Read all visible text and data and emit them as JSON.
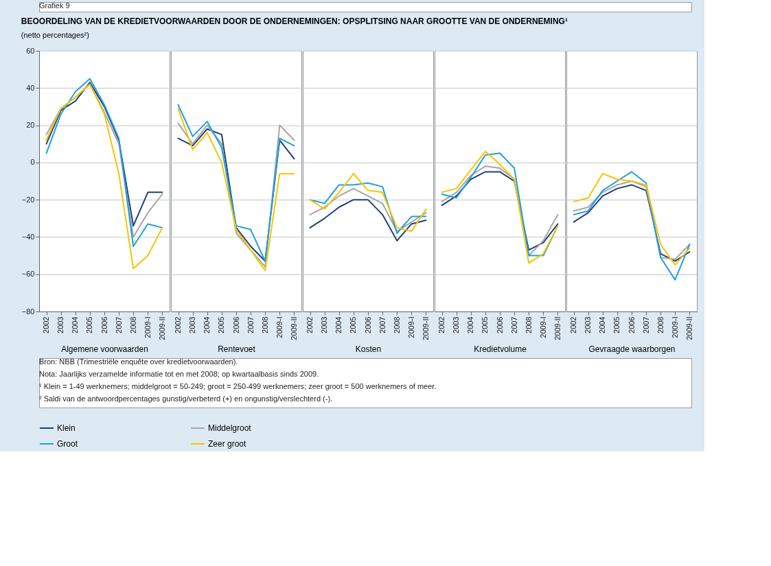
{
  "chart_data": [
    {
      "type": "line",
      "title": "BEOORDELING VAN DE KREDIETVOORWAARDEN DOOR DE ONDERNEMINGEN: OPSPLITSING NAAR GROOTTE VAN DE ONDERNEMING¹",
      "subtitle": "(netto percentages²)",
      "annotations": [
        "Grafiek 9",
        "Bron: NBB (Trimestriële enquête over kredietvoorwaarden).",
        "Nota: Jaarlijks verzamelde informatie tot en met 2008; op kwartaalbasis sinds 2009.",
        "¹ Klein = 1-49 werknemers; middelgroot = 50-249; groot = 250-499 werknemers; zeer groot = 500 werknemers of meer.",
        "² Saldi van de antwoordpercentages gunstig/verbeterd (+) en ongunstig/verslechterd (-)."
      ],
      "xlabel": "Algemene voorwaarden",
      "legend": "bottom",
      "grid": "y",
      "categories": [
        "2002",
        "2003",
        "2004",
        "2005",
        "2006",
        "2007",
        "2008",
        "2009-I",
        "2009-II"
      ],
      "ylim": [
        -80,
        60
      ],
      "yticks": [
        -80,
        -60,
        -40,
        -20,
        0,
        20,
        40,
        60
      ],
      "series": [
        {
          "name": "Klein",
          "color": "#1f3f7a",
          "values": [
            10,
            28,
            33,
            43,
            30,
            12,
            -34,
            -16,
            -16
          ]
        },
        {
          "name": "Middelgroot",
          "color": "#a6a6a6",
          "values": [
            15,
            29,
            35,
            42,
            27,
            10,
            -40,
            -27,
            -17
          ]
        },
        {
          "name": "Groot",
          "color": "#1ea0e0",
          "values": [
            5,
            26,
            38,
            45,
            31,
            13,
            -45,
            -33,
            -35
          ]
        },
        {
          "name": "Zeer groot",
          "color": "#f5c400",
          "values": [
            12,
            29,
            35,
            42,
            26,
            -6,
            -57,
            -50,
            -35
          ]
        }
      ]
    },
    {
      "type": "line",
      "xlabel": "Rentevoet",
      "grid": "y",
      "tick_labels": "x",
      "categories": [
        "2002",
        "2003",
        "2004",
        "2005",
        "2006",
        "2007",
        "2008",
        "2009-I",
        "2009-II"
      ],
      "ylim": [
        -80,
        60
      ],
      "yticks": [
        -80,
        -60,
        -40,
        -20,
        0,
        20,
        40,
        60
      ],
      "series": [
        {
          "name": "Klein",
          "color": "#1f3f7a",
          "values": [
            13,
            9,
            18,
            15,
            -35,
            -45,
            -53,
            12,
            2
          ]
        },
        {
          "name": "Middelgroot",
          "color": "#a6a6a6",
          "values": [
            21,
            10,
            20,
            10,
            -38,
            -47,
            -56,
            20,
            12
          ]
        },
        {
          "name": "Groot",
          "color": "#1ea0e0",
          "values": [
            31,
            14,
            22,
            8,
            -34,
            -36,
            -53,
            13,
            9
          ]
        },
        {
          "name": "Zeer groot",
          "color": "#f5c400",
          "values": [
            29,
            7,
            16,
            0,
            -36,
            -47,
            -58,
            -6,
            -6
          ]
        }
      ]
    },
    {
      "type": "line",
      "xlabel": "Kosten",
      "grid": "y",
      "tick_labels": "x",
      "categories": [
        "2002",
        "2003",
        "2004",
        "2005",
        "2006",
        "2007",
        "2008",
        "2009-I",
        "2009-II"
      ],
      "ylim": [
        -80,
        60
      ],
      "yticks": [
        -80,
        -60,
        -40,
        -20,
        0,
        20,
        40,
        60
      ],
      "series": [
        {
          "name": "Klein",
          "color": "#1f3f7a",
          "values": [
            -35,
            -30,
            -24,
            -20,
            -20,
            -28,
            -42,
            -33,
            -31
          ]
        },
        {
          "name": "Middelgroot",
          "color": "#a6a6a6",
          "values": [
            -28,
            -24,
            -18,
            -14,
            -18,
            -22,
            -37,
            -32,
            -27
          ]
        },
        {
          "name": "Groot",
          "color": "#1ea0e0",
          "values": [
            -20,
            -22,
            -12,
            -12,
            -11,
            -13,
            -38,
            -29,
            -29
          ]
        },
        {
          "name": "Zeer groot",
          "color": "#f5c400",
          "values": [
            -20,
            -25,
            -16,
            -6,
            -15,
            -16,
            -35,
            -37,
            -25
          ]
        }
      ]
    },
    {
      "type": "line",
      "xlabel": "Kredietvolume",
      "grid": "y",
      "tick_labels": "x",
      "categories": [
        "2002",
        "2003",
        "2004",
        "2005",
        "2006",
        "2007",
        "2008",
        "2009-I",
        "2009-II"
      ],
      "ylim": [
        -80,
        60
      ],
      "yticks": [
        -80,
        -60,
        -40,
        -20,
        0,
        20,
        40,
        60
      ],
      "series": [
        {
          "name": "Klein",
          "color": "#1f3f7a",
          "values": [
            -23,
            -18,
            -9,
            -5,
            -5,
            -10,
            -47,
            -43,
            -33
          ]
        },
        {
          "name": "Middelgroot",
          "color": "#a6a6a6",
          "values": [
            -21,
            -16,
            -7,
            -2,
            -3,
            -9,
            -50,
            -42,
            -28
          ]
        },
        {
          "name": "Groot",
          "color": "#1ea0e0",
          "values": [
            -17,
            -19,
            -8,
            4,
            5,
            -3,
            -50,
            -50,
            -34
          ]
        },
        {
          "name": "Zeer groot",
          "color": "#f5c400",
          "values": [
            -16,
            -14,
            -4,
            6,
            -1,
            -9,
            -54,
            -49,
            -34
          ]
        }
      ]
    },
    {
      "type": "line",
      "xlabel": "Gevraagde waarborgen",
      "grid": "y",
      "tick_labels": "x",
      "categories": [
        "2002",
        "2003",
        "2004",
        "2005",
        "2006",
        "2007",
        "2008",
        "2009-I",
        "2009-II"
      ],
      "ylim": [
        -80,
        60
      ],
      "yticks": [
        -80,
        -60,
        -40,
        -20,
        0,
        20,
        40,
        60
      ],
      "series": [
        {
          "name": "Klein",
          "color": "#1f3f7a",
          "values": [
            -32,
            -27,
            -18,
            -14,
            -12,
            -15,
            -49,
            -53,
            -48
          ]
        },
        {
          "name": "Middelgroot",
          "color": "#a6a6a6",
          "values": [
            -26,
            -24,
            -16,
            -12,
            -10,
            -13,
            -51,
            -52,
            -44
          ]
        },
        {
          "name": "Groot",
          "color": "#1ea0e0",
          "values": [
            -28,
            -26,
            -15,
            -10,
            -5,
            -11,
            -51,
            -63,
            -44
          ]
        },
        {
          "name": "Zeer groot",
          "color": "#f5c400",
          "values": [
            -21,
            -19,
            -6,
            -9,
            -10,
            -12,
            -44,
            -55,
            -46
          ]
        }
      ]
    }
  ]
}
